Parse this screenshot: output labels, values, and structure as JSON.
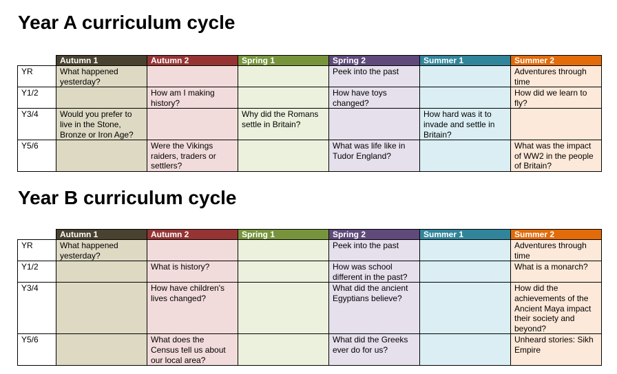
{
  "tables": [
    {
      "title": "Year A curriculum cycle",
      "headers": [
        "Autumn 1",
        "Autumn 2",
        "Spring 1",
        "Spring 2",
        "Summer 1",
        "Summer 2"
      ],
      "rows": [
        {
          "year": "YR",
          "cells": [
            "What happened yesterday?",
            "",
            "",
            "Peek into the past",
            "",
            "Adventures through time"
          ]
        },
        {
          "year": "Y1/2",
          "cells": [
            "",
            "How am I making history?",
            "",
            "How have toys changed?",
            "",
            "How did we learn to fly?"
          ]
        },
        {
          "year": "Y3/4",
          "cells": [
            "Would you prefer to live in the Stone, Bronze or Iron Age?",
            "",
            "Why did the Romans settle in Britain?",
            "",
            "How hard was it to invade and settle in Britain?",
            ""
          ]
        },
        {
          "year": "Y5/6",
          "cells": [
            "",
            "Were the Vikings raiders, traders or settlers?",
            "",
            "What was life like in Tudor England?",
            "",
            "What was the impact of WW2 in the people of Britain?"
          ]
        }
      ]
    },
    {
      "title": "Year B curriculum cycle",
      "headers": [
        "Autumn 1",
        "Autumn 2",
        "Spring 1",
        "Spring 2",
        "Summer 1",
        "Summer 2"
      ],
      "rows": [
        {
          "year": "YR",
          "cells": [
            "What happened yesterday?",
            "",
            "",
            "Peek into the past",
            "",
            "Adventures through time"
          ]
        },
        {
          "year": "Y1/2",
          "cells": [
            "",
            "What is history?",
            "",
            "How was school different in the past?",
            "",
            "What is a monarch?"
          ]
        },
        {
          "year": "Y3/4",
          "cells": [
            "",
            "How have children's lives changed?",
            "",
            "What did the ancient Egyptians believe?",
            "",
            "How did the achievements of the Ancient Maya impact their society and beyond?"
          ]
        },
        {
          "year": "Y5/6",
          "cells": [
            "",
            "What does the Census tell us about our local area?",
            "",
            "What did the Greeks ever do for us?",
            "",
            "Unheard stories: Sikh Empire"
          ]
        }
      ]
    }
  ],
  "colors": {
    "autumn1_header": "#4a4230",
    "autumn2_header": "#963434",
    "spring1_header": "#77943c",
    "spring2_header": "#5f4a7b",
    "summer1_header": "#31859b",
    "summer2_header": "#e26b0a",
    "autumn1_fill": "#ddd9c3",
    "autumn2_fill": "#f2dcdb",
    "spring1_fill": "#ebf1dd",
    "spring2_fill": "#e5e0ec",
    "summer1_fill": "#daeef3",
    "summer2_fill": "#fde9d9"
  }
}
